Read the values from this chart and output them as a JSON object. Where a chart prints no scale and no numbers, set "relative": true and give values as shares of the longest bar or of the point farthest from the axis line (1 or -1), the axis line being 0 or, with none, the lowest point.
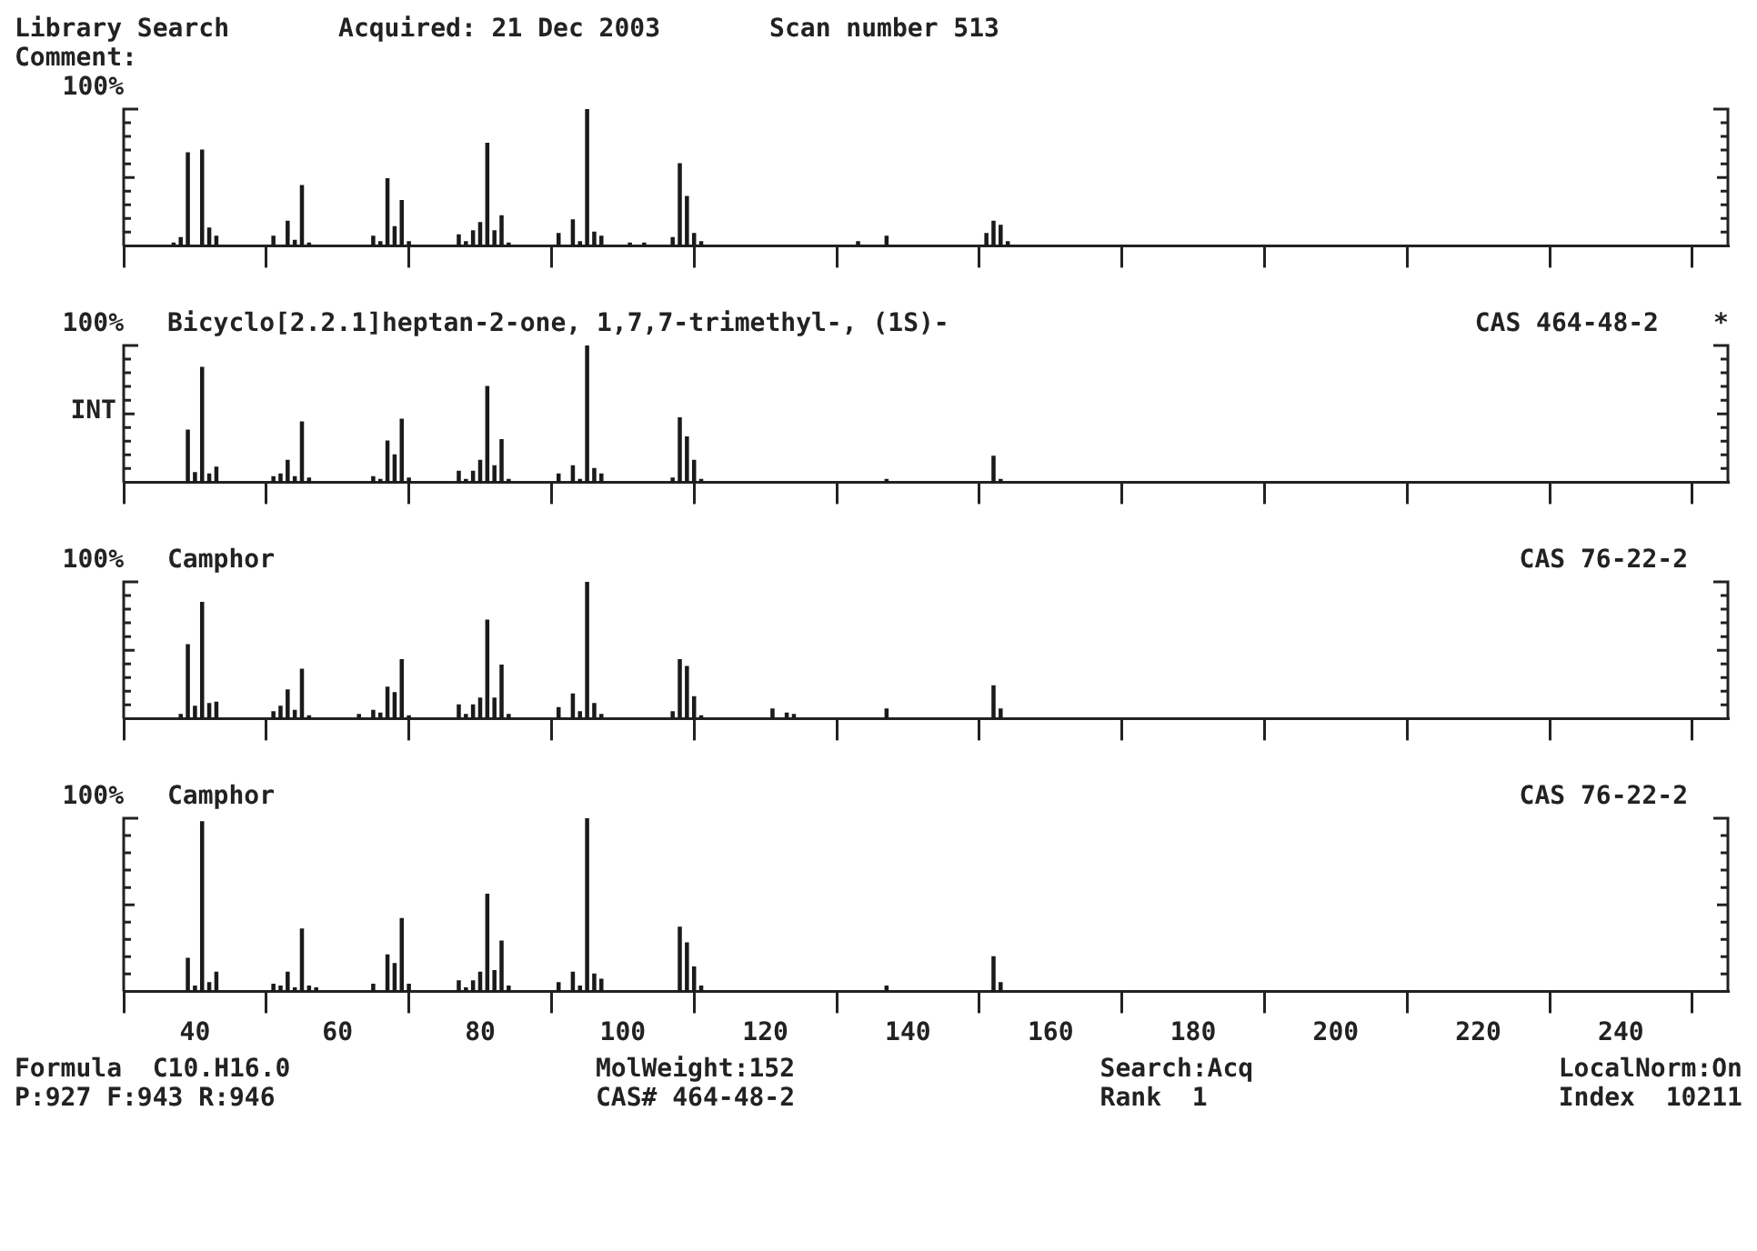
{
  "chart_data": [
    {
      "type": "bar",
      "title": "Library Search",
      "annotations": [
        "100%",
        "Acquired: 21 Dec 2003",
        "Scan number 513",
        "Comment:"
      ],
      "relative": true,
      "color": "#1a1a1a",
      "xlim": [
        30,
        255
      ],
      "xticks": [
        40,
        60,
        80,
        100,
        120,
        140,
        160,
        180,
        200,
        220,
        240
      ],
      "tick_labels": false,
      "grid": false,
      "legend": false,
      "x": [
        37,
        38,
        39,
        41,
        42,
        43,
        51,
        53,
        54,
        55,
        56,
        65,
        66,
        67,
        68,
        69,
        70,
        77,
        78,
        79,
        80,
        81,
        82,
        83,
        84,
        91,
        93,
        94,
        95,
        96,
        97,
        101,
        103,
        107,
        108,
        109,
        110,
        111,
        133,
        137,
        151,
        152,
        153,
        154
      ],
      "values": [
        0.02,
        0.06,
        0.68,
        0.7,
        0.13,
        0.07,
        0.07,
        0.18,
        0.04,
        0.44,
        0.02,
        0.07,
        0.03,
        0.49,
        0.14,
        0.33,
        0.03,
        0.08,
        0.03,
        0.11,
        0.17,
        0.75,
        0.11,
        0.22,
        0.02,
        0.09,
        0.19,
        0.03,
        1,
        0.1,
        0.07,
        0.02,
        0.02,
        0.06,
        0.6,
        0.36,
        0.09,
        0.03,
        0.03,
        0.07,
        0.09,
        0.18,
        0.15,
        0.03
      ]
    },
    {
      "type": "bar",
      "title": "Bicyclo[2.2.1]heptan-2-one, 1,7,7-trimethyl-, (1S)-",
      "subtitle": "CAS 464-48-2",
      "ylabel": "INT",
      "annotations": [
        "100%",
        "*"
      ],
      "relative": true,
      "color": "#1a1a1a",
      "xlim": [
        30,
        255
      ],
      "xticks": [
        40,
        60,
        80,
        100,
        120,
        140,
        160,
        180,
        200,
        220,
        240
      ],
      "tick_labels": false,
      "grid": false,
      "legend": false,
      "x": [
        39,
        40,
        41,
        42,
        43,
        51,
        52,
        53,
        54,
        55,
        56,
        65,
        66,
        67,
        68,
        69,
        70,
        77,
        78,
        79,
        80,
        81,
        82,
        83,
        84,
        91,
        93,
        94,
        95,
        96,
        97,
        107,
        108,
        109,
        110,
        111,
        137,
        152,
        153
      ],
      "values": [
        0.38,
        0.07,
        0.84,
        0.06,
        0.11,
        0.04,
        0.06,
        0.16,
        0.04,
        0.44,
        0.03,
        0.04,
        0.02,
        0.3,
        0.2,
        0.46,
        0.03,
        0.08,
        0.02,
        0.08,
        0.16,
        0.7,
        0.12,
        0.31,
        0.02,
        0.06,
        0.12,
        0.02,
        1,
        0.1,
        0.06,
        0.03,
        0.47,
        0.33,
        0.16,
        0.02,
        0.02,
        0.19,
        0.02
      ]
    },
    {
      "type": "bar",
      "title": "Camphor",
      "subtitle": "CAS 76-22-2",
      "annotations": [
        "100%"
      ],
      "relative": true,
      "color": "#1a1a1a",
      "xlim": [
        30,
        255
      ],
      "xticks": [
        40,
        60,
        80,
        100,
        120,
        140,
        160,
        180,
        200,
        220,
        240
      ],
      "tick_labels": false,
      "grid": false,
      "legend": false,
      "x": [
        38,
        39,
        40,
        41,
        42,
        43,
        51,
        52,
        53,
        54,
        55,
        56,
        63,
        65,
        66,
        67,
        68,
        69,
        70,
        77,
        78,
        79,
        80,
        81,
        82,
        83,
        84,
        91,
        93,
        94,
        95,
        96,
        97,
        107,
        108,
        109,
        110,
        111,
        121,
        123,
        124,
        137,
        152,
        153
      ],
      "values": [
        0.03,
        0.54,
        0.09,
        0.85,
        0.11,
        0.12,
        0.05,
        0.09,
        0.21,
        0.06,
        0.36,
        0.02,
        0.03,
        0.06,
        0.04,
        0.23,
        0.19,
        0.43,
        0.02,
        0.1,
        0.03,
        0.1,
        0.15,
        0.72,
        0.15,
        0.39,
        0.03,
        0.08,
        0.18,
        0.05,
        1,
        0.11,
        0.03,
        0.05,
        0.43,
        0.38,
        0.16,
        0.02,
        0.07,
        0.04,
        0.03,
        0.07,
        0.24,
        0.07
      ]
    },
    {
      "type": "bar",
      "title": "Camphor",
      "subtitle": "CAS 76-22-2",
      "annotations": [
        "100%",
        "Formula  C10.H16.0",
        "MolWeight:152",
        "Search:Acq",
        "LocalNorm:On",
        "P:927 F:943 R:946",
        "CAS# 464-48-2",
        "Rank  1",
        "Index  10211"
      ],
      "relative": true,
      "color": "#1a1a1a",
      "xlim": [
        30,
        255
      ],
      "xticks": [
        40,
        60,
        80,
        100,
        120,
        140,
        160,
        180,
        200,
        220,
        240
      ],
      "tick_labels": "x",
      "grid": false,
      "legend": false,
      "x": [
        39,
        40,
        41,
        42,
        43,
        51,
        52,
        53,
        54,
        55,
        56,
        57,
        65,
        67,
        68,
        69,
        70,
        77,
        78,
        79,
        80,
        81,
        82,
        83,
        84,
        91,
        93,
        94,
        95,
        96,
        97,
        108,
        109,
        110,
        111,
        137,
        152,
        153
      ],
      "values": [
        0.19,
        0.03,
        0.98,
        0.05,
        0.11,
        0.04,
        0.03,
        0.11,
        0.02,
        0.36,
        0.03,
        0.02,
        0.04,
        0.21,
        0.16,
        0.42,
        0.04,
        0.06,
        0.02,
        0.06,
        0.11,
        0.56,
        0.12,
        0.29,
        0.03,
        0.05,
        0.11,
        0.03,
        1,
        0.1,
        0.07,
        0.37,
        0.28,
        0.14,
        0.03,
        0.03,
        0.2,
        0.05
      ]
    }
  ]
}
